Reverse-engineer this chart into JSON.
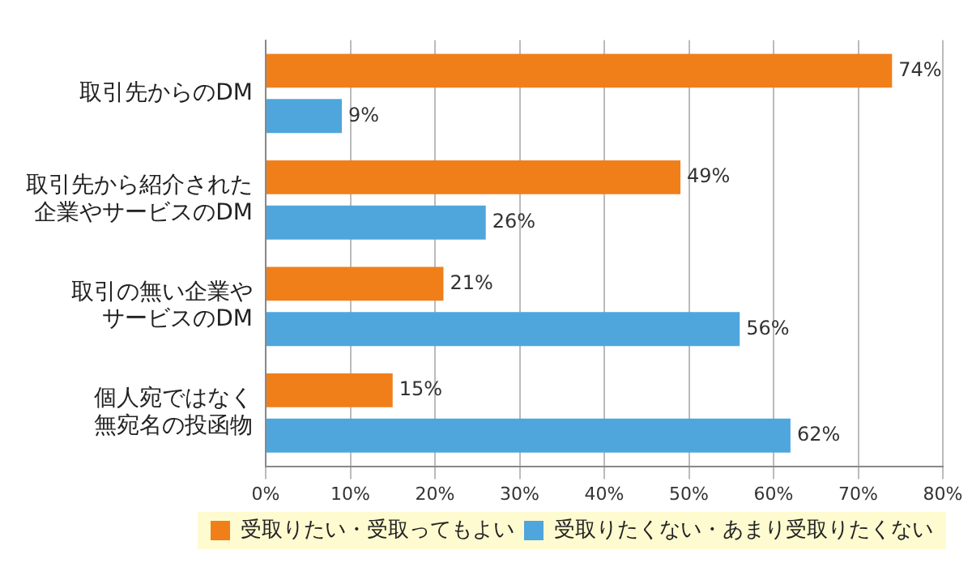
{
  "chart_data": {
    "type": "bar",
    "orientation": "horizontal",
    "categories": [
      "取引先からのDM",
      "取引先から紹介された企業やサービスのDM",
      "取引の無い企業やサービスのDM",
      "個人宛ではなく無宛名の投函物"
    ],
    "series": [
      {
        "name": "受取りたい・受取ってもよい",
        "color": "#f07f1a",
        "values": [
          74,
          49,
          21,
          15
        ],
        "value_labels": [
          "74%",
          "49%",
          "21%",
          "15%"
        ]
      },
      {
        "name": "受取りたくない・あまり受取りたくない",
        "color": "#4ea6dc",
        "values": [
          9,
          26,
          56,
          62
        ],
        "value_labels": [
          "9%",
          "26%",
          "56%",
          "62%"
        ]
      }
    ],
    "xlim": [
      0,
      80
    ],
    "xticks": [
      {
        "value": 0,
        "label": "0%"
      },
      {
        "value": 10,
        "label": "10%"
      },
      {
        "value": 20,
        "label": "20%"
      },
      {
        "value": 30,
        "label": "30%"
      },
      {
        "value": 40,
        "label": "40%"
      },
      {
        "value": 50,
        "label": "50%"
      },
      {
        "value": 60,
        "label": "60%"
      },
      {
        "value": 70,
        "label": "70%"
      },
      {
        "value": 80,
        "label": "80%"
      }
    ],
    "grid": "x",
    "legend": "bottom right"
  }
}
